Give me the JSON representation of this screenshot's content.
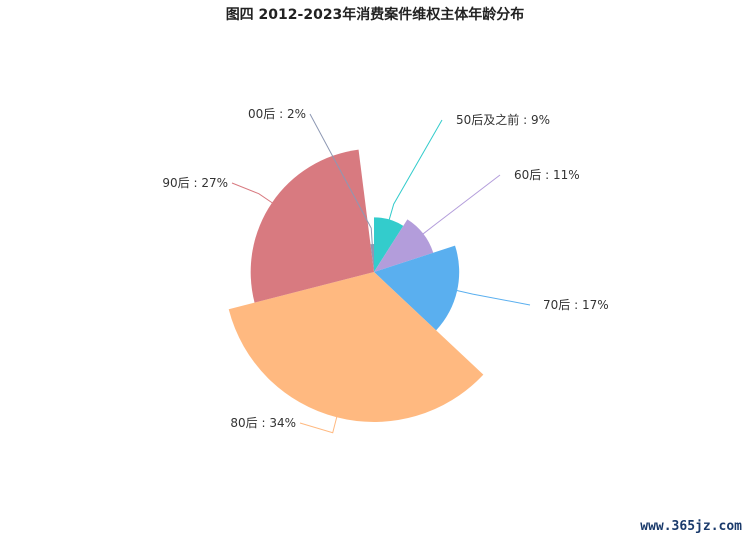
{
  "chart_data": {
    "type": "pie",
    "subtype": "rose",
    "title": "图四 2012-2023年消费案件维权主体年龄分布",
    "categories": [
      "50后及之前",
      "60后",
      "70后",
      "80后",
      "90后",
      "00后"
    ],
    "values": [
      9,
      11,
      17,
      34,
      27,
      2
    ],
    "unit": "%",
    "labels": [
      "50后及之前 : 9%",
      "60后 : 11%",
      "70后 : 17%",
      "80后 : 34%",
      "90后 : 27%",
      "00后 : 2%"
    ],
    "colors": [
      "#33cccc",
      "#b39ddb",
      "#5aafef",
      "#ffb980",
      "#d87a80",
      "#8d98b3"
    ]
  },
  "watermark": "www.365jz.com"
}
